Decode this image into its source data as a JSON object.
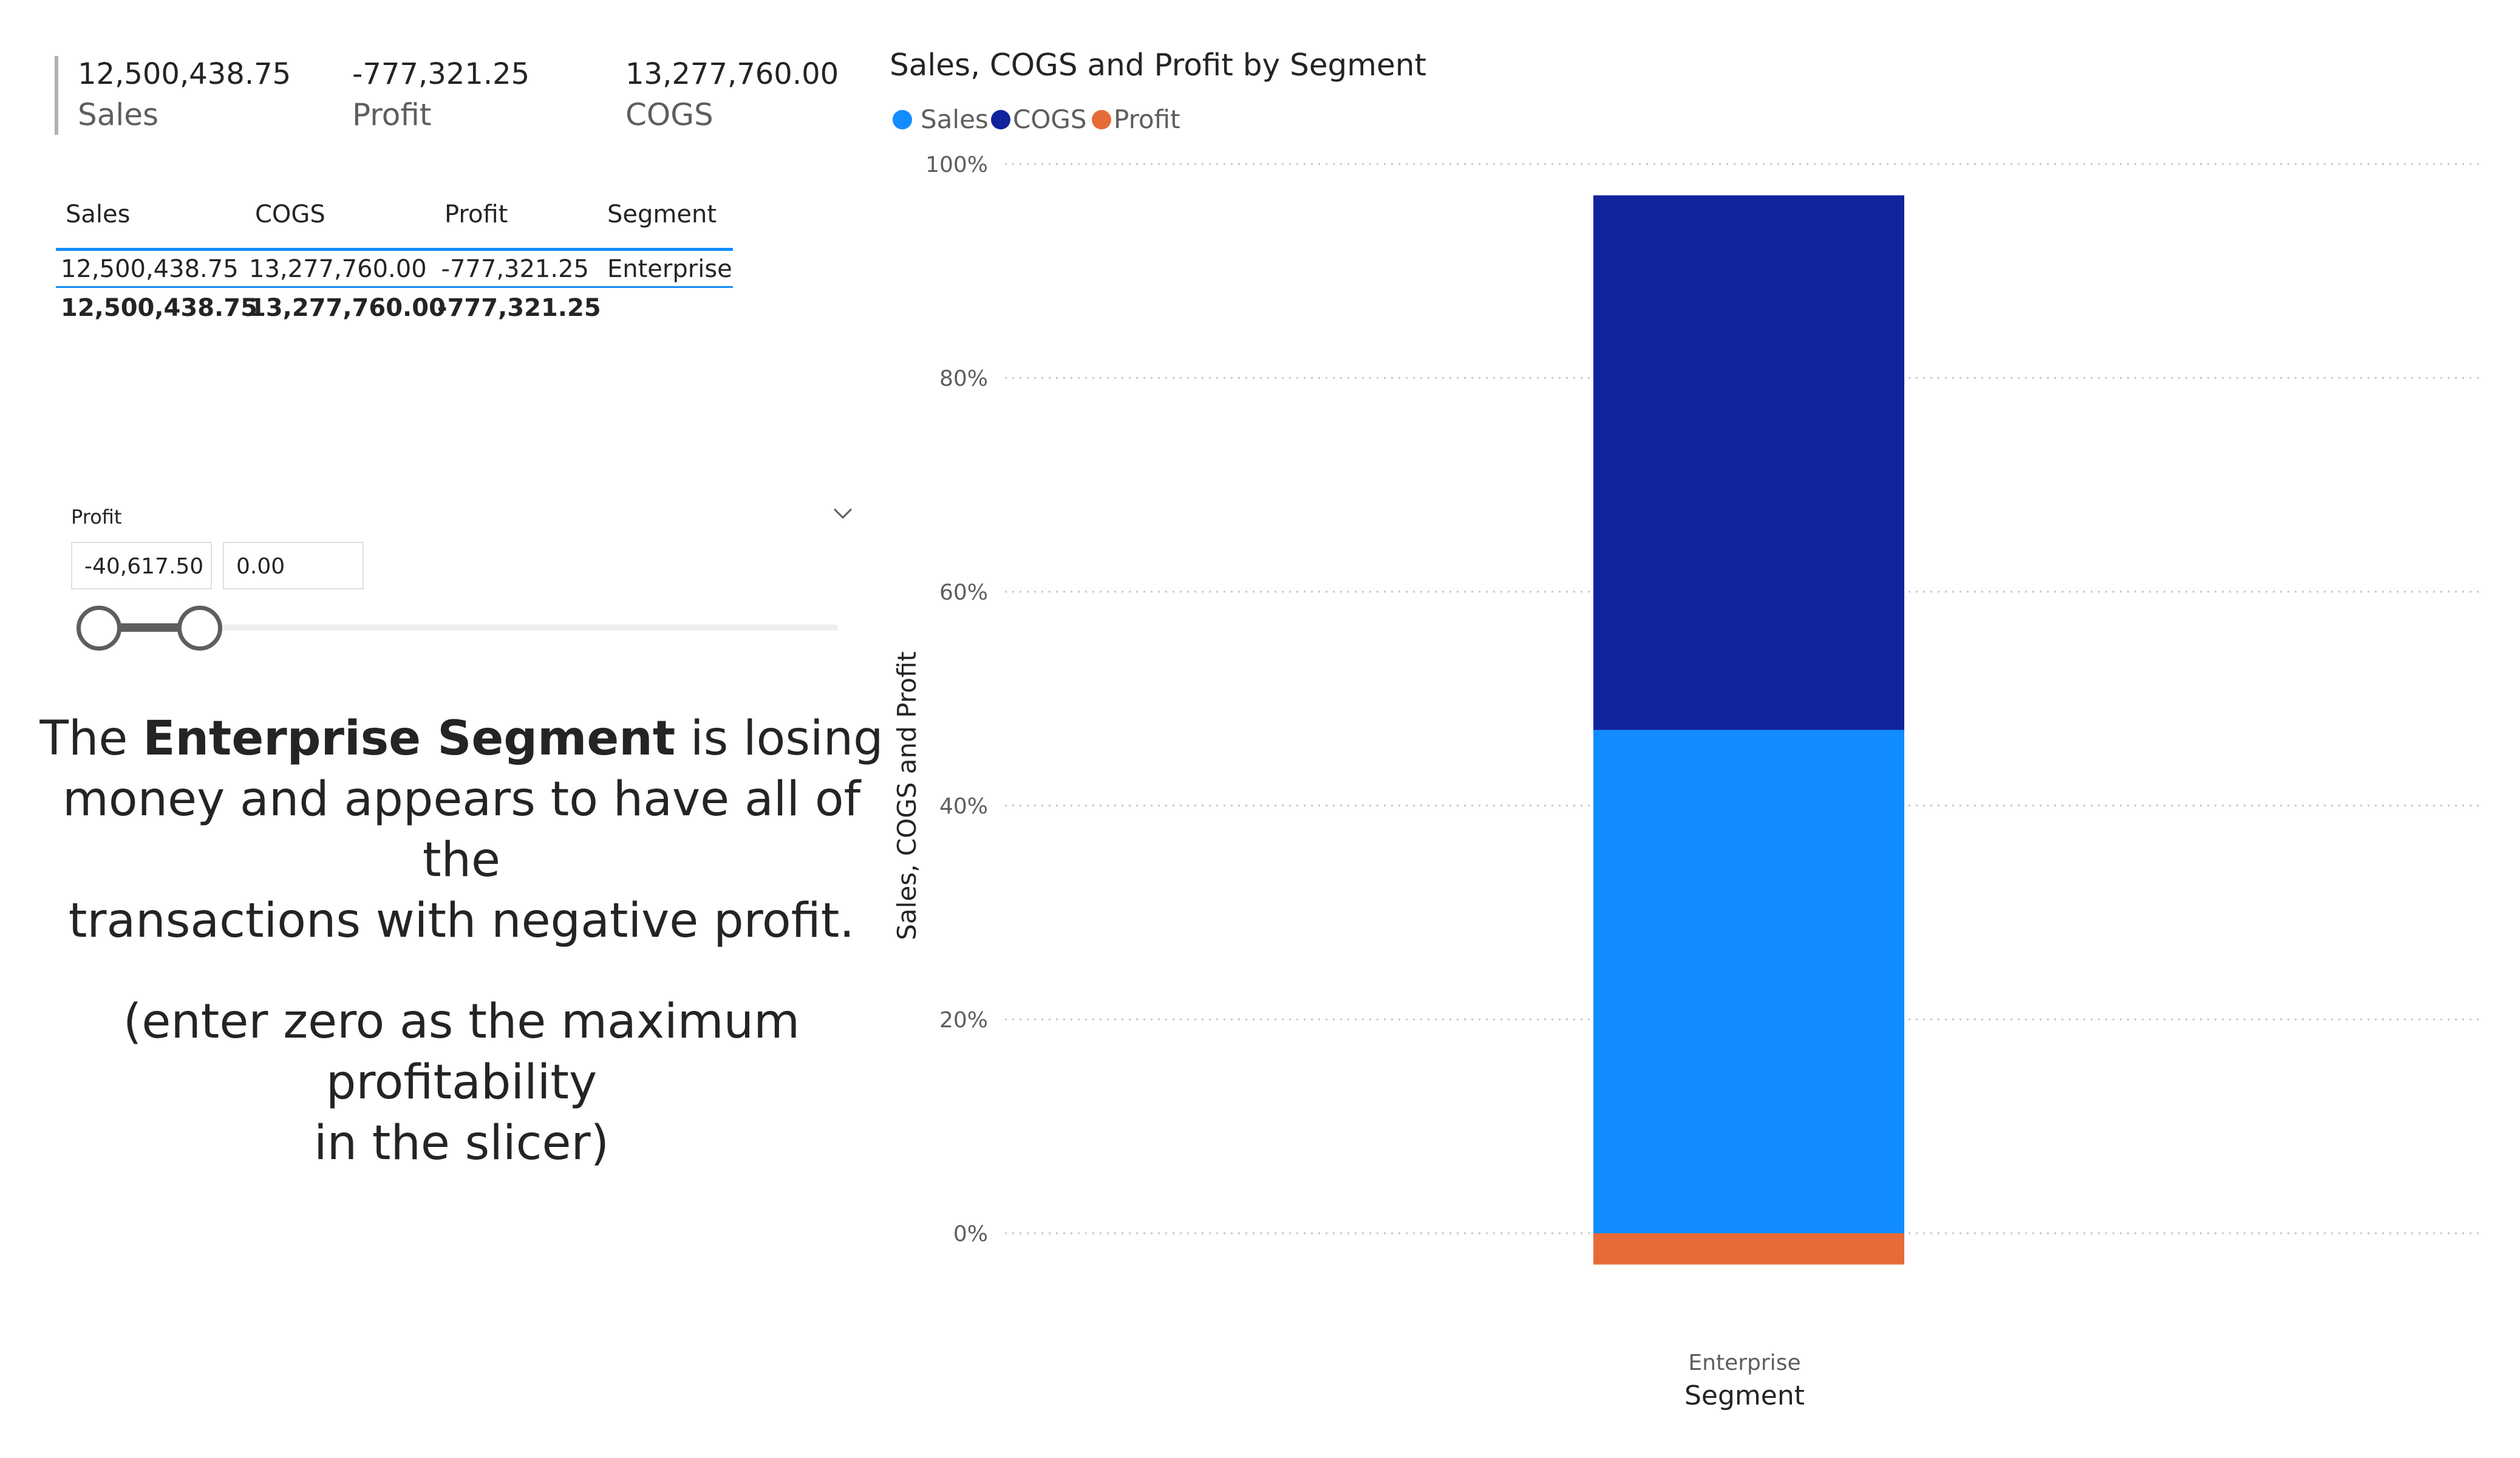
{
  "kpi_card": {
    "items": [
      {
        "value": "12,500,438.75",
        "label": "Sales"
      },
      {
        "value": "-777,321.25",
        "label": "Profit"
      },
      {
        "value": "13,277,760.00",
        "label": "COGS"
      }
    ]
  },
  "table": {
    "headers": [
      "Sales",
      "COGS",
      "Profit",
      "Segment"
    ],
    "rows": [
      [
        "12,500,438.75",
        "13,277,760.00",
        "-777,321.25",
        "Enterprise"
      ]
    ],
    "totals": [
      "12,500,438.75",
      "13,277,760.00",
      "-777,321.25"
    ]
  },
  "slicer": {
    "title": "Profit",
    "min_value": "-40,617.50",
    "max_value": "0.00",
    "chevron_icon": "chevron-down-icon"
  },
  "narrative": {
    "line1_pre": "The ",
    "line1_bold": "Enterprise Segment",
    "line1_post": " is losing",
    "line2": "money and appears to have all of the",
    "line3": "transactions with negative profit.",
    "note_line1": "(enter zero as the maximum profitability",
    "note_line2": "in the slicer)"
  },
  "colors": {
    "sales": "#118dff",
    "cogs": "#12239e",
    "profit": "#e66c37",
    "gridline": "#c8c6c4",
    "axis_text": "#605e5c"
  },
  "chart_data": {
    "type": "bar",
    "title": "Sales, COGS and Profit by Segment",
    "xlabel": "Segment",
    "ylabel": "Sales, COGS and Profit",
    "categories": [
      "Enterprise"
    ],
    "series": [
      {
        "name": "Sales",
        "values": [
          12500438.75
        ],
        "color": "#118dff"
      },
      {
        "name": "COGS",
        "values": [
          13277760.0
        ],
        "color": "#12239e"
      },
      {
        "name": "Profit",
        "values": [
          -777321.25
        ],
        "color": "#e66c37"
      }
    ],
    "yticks": [
      "0%",
      "20%",
      "40%",
      "60%",
      "80%",
      "100%"
    ],
    "ylim": [
      0,
      100
    ],
    "legend_position": "top-left",
    "grid": true,
    "stacking": "100%"
  }
}
